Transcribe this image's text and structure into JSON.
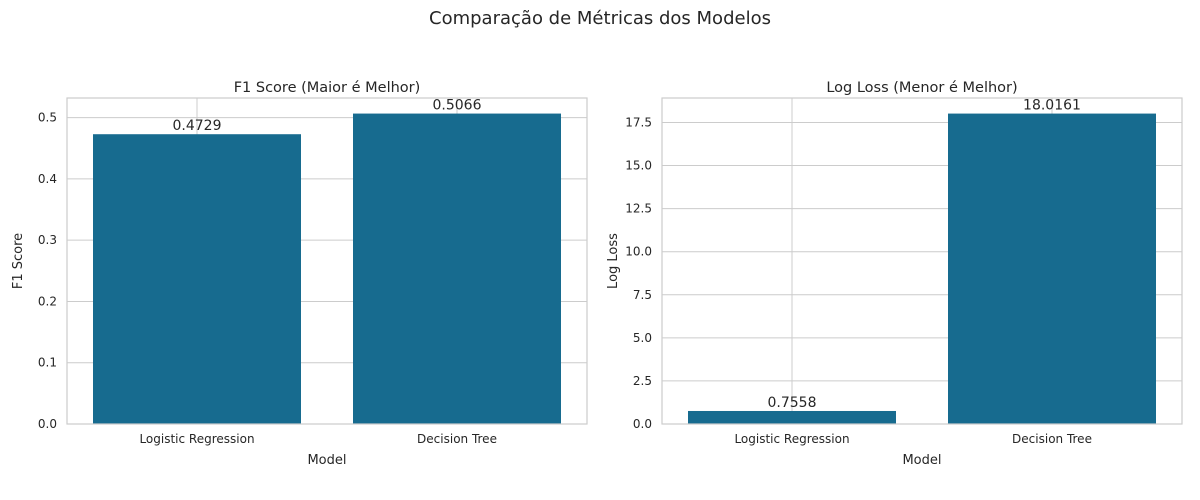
{
  "figure": {
    "title": "Comparação de Métricas dos Modelos"
  },
  "colors": {
    "bar": "#176b8f",
    "grid": "#cccccc",
    "spine": "#cccccc",
    "text": "#262626"
  },
  "chart_data": [
    {
      "type": "bar",
      "title": "F1 Score (Maior é Melhor)",
      "xlabel": "Model",
      "ylabel": "F1 Score",
      "categories": [
        "Logistic Regression",
        "Decision Tree"
      ],
      "values": [
        0.4729,
        0.5066
      ],
      "value_labels": [
        "0.4729",
        "0.5066"
      ],
      "ylim": [
        0,
        0.532
      ],
      "yticks": [
        0.0,
        0.1,
        0.2,
        0.3,
        0.4,
        0.5
      ],
      "ytick_labels": [
        "0.0",
        "0.1",
        "0.2",
        "0.3",
        "0.4",
        "0.5"
      ],
      "grid": true,
      "legend": "none"
    },
    {
      "type": "bar",
      "title": "Log Loss (Menor é Melhor)",
      "xlabel": "Model",
      "ylabel": "Log Loss",
      "categories": [
        "Logistic Regression",
        "Decision Tree"
      ],
      "values": [
        0.7558,
        18.0161
      ],
      "value_labels": [
        "0.7558",
        "18.0161"
      ],
      "ylim": [
        0,
        18.92
      ],
      "yticks": [
        0.0,
        2.5,
        5.0,
        7.5,
        10.0,
        12.5,
        15.0,
        17.5
      ],
      "ytick_labels": [
        "0.0",
        "2.5",
        "5.0",
        "7.5",
        "10.0",
        "12.5",
        "15.0",
        "17.5"
      ],
      "grid": true,
      "legend": "none"
    }
  ]
}
